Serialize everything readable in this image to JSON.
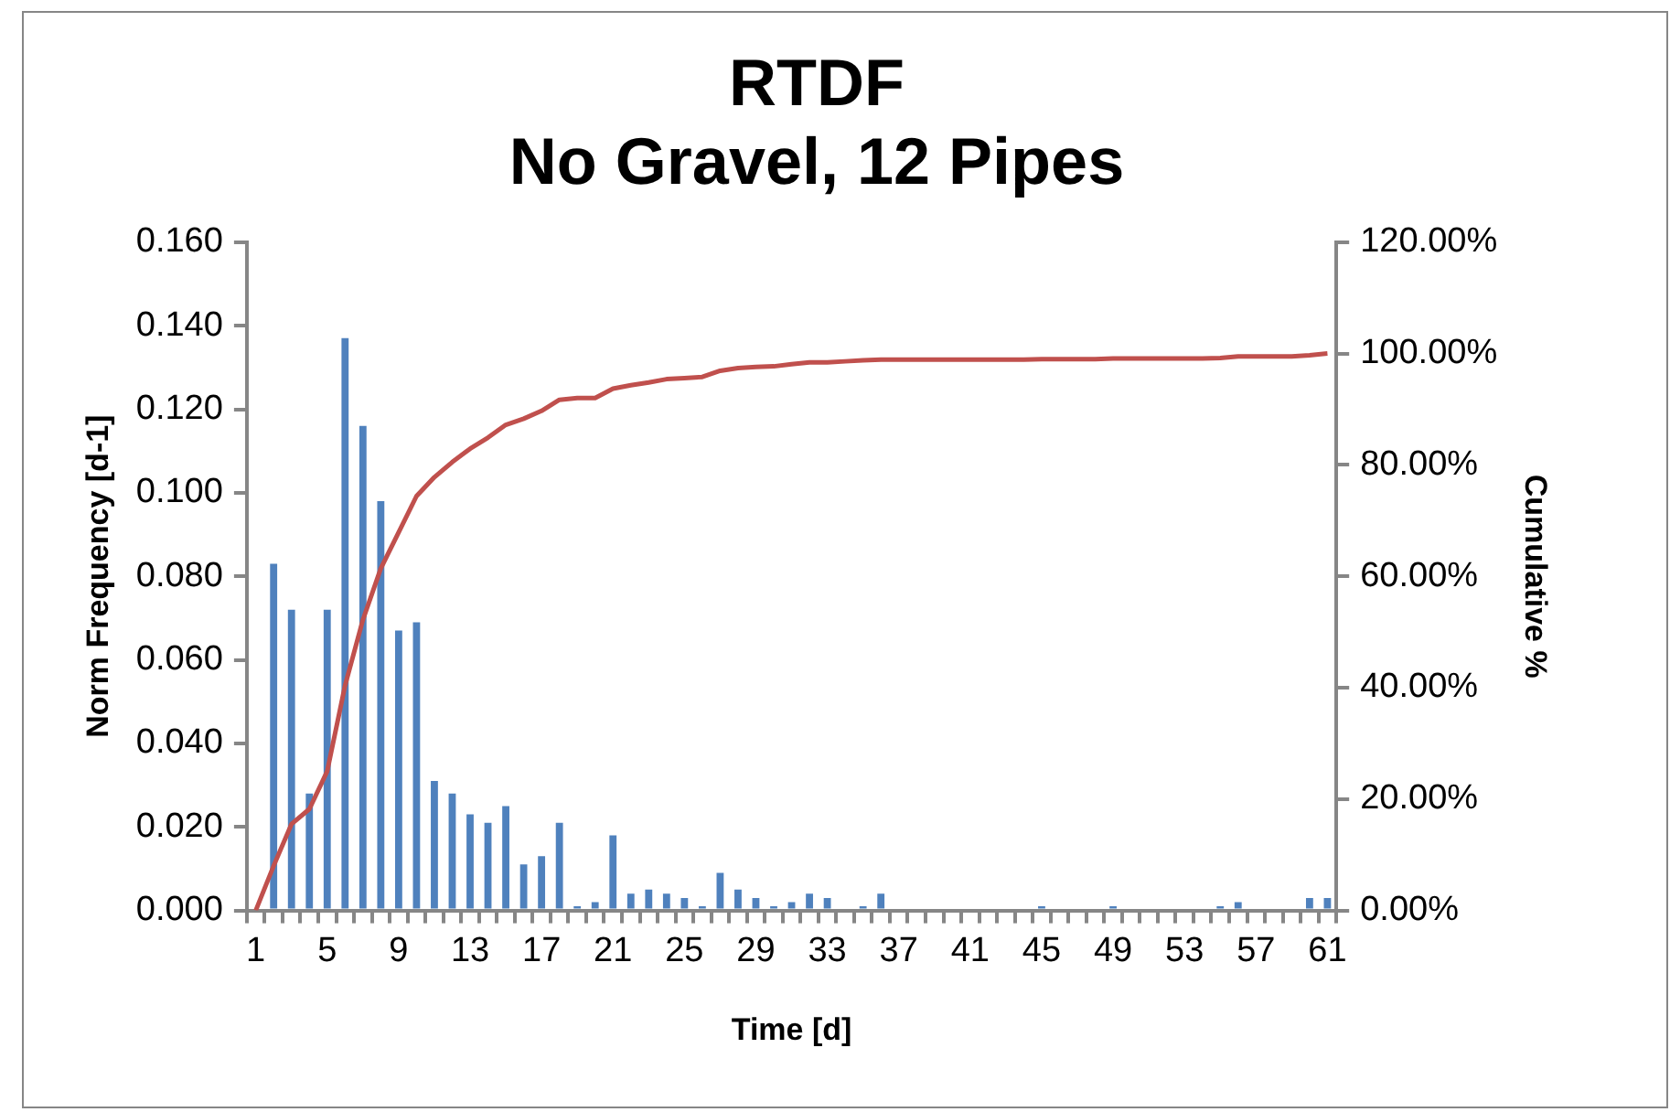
{
  "chart_data": {
    "type": "bar",
    "title": "RTDF\nNo Gravel, 12 Pipes",
    "xlabel": "Time [d]",
    "ylabel": "Norm Frequency [d-1]",
    "y2label": "Cumulative %",
    "categories": [
      "1",
      null,
      null,
      null,
      "5",
      null,
      null,
      null,
      "9",
      null,
      null,
      null,
      "13",
      null,
      null,
      null,
      "17",
      null,
      null,
      null,
      "21",
      null,
      null,
      null,
      "25",
      null,
      null,
      null,
      "29",
      null,
      null,
      null,
      "33",
      null,
      null,
      null,
      "37",
      null,
      null,
      null,
      "41",
      null,
      null,
      null,
      "45",
      null,
      null,
      null,
      "49",
      null,
      null,
      null,
      "53",
      null,
      null,
      null,
      "57",
      null,
      null,
      null,
      "61"
    ],
    "series": [
      {
        "color": "#4f81bd",
        "values": [
          0,
          0.083,
          0.072,
          0.028,
          0.072,
          0.137,
          0.116,
          0.098,
          0.067,
          0.069,
          0.031,
          0.028,
          0.023,
          0.021,
          0.025,
          0.011,
          0.013,
          0.021,
          0.001,
          0.002,
          0.018,
          0.004,
          0.005,
          0.004,
          0.003,
          0.001,
          0.009,
          0.005,
          0.003,
          0.001,
          0.002,
          0.004,
          0.003,
          0,
          0.001,
          0.004,
          0,
          0,
          0,
          0,
          0,
          0,
          0,
          0,
          0.001,
          0,
          0,
          0,
          0.001,
          0,
          0,
          0,
          0,
          0,
          0.001,
          0.002,
          0,
          0,
          0,
          0.003,
          0.003
        ]
      },
      {
        "type": "line",
        "axis": "y2",
        "color": "#c0504d",
        "marker": "none",
        "values": [
          0,
          8,
          15.5,
          18.2,
          25,
          40.4,
          52.2,
          61.4,
          67.9,
          74.4,
          77.8,
          80.5,
          82.9,
          84.9,
          87.2,
          88.3,
          89.7,
          91.7,
          92,
          92,
          93.7,
          94.3,
          94.8,
          95.4,
          95.6,
          95.8,
          96.9,
          97.4,
          97.6,
          97.7,
          98.1,
          98.4,
          98.4,
          98.6,
          98.8,
          98.9,
          98.9,
          98.9,
          98.9,
          98.9,
          98.9,
          98.9,
          98.9,
          98.9,
          99,
          99,
          99,
          99,
          99.1,
          99.1,
          99.1,
          99.1,
          99.1,
          99.1,
          99.2,
          99.5,
          99.5,
          99.5,
          99.5,
          99.7,
          100
        ]
      }
    ],
    "ylim": [
      0,
      0.16
    ],
    "yticks": [
      {
        "value": 0,
        "label": "0.000"
      },
      {
        "value": 0.02,
        "label": "0.020"
      },
      {
        "value": 0.04,
        "label": "0.040"
      },
      {
        "value": 0.06,
        "label": "0.060"
      },
      {
        "value": 0.08,
        "label": "0.080"
      },
      {
        "value": 0.1,
        "label": "0.100"
      },
      {
        "value": 0.12,
        "label": "0.120"
      },
      {
        "value": 0.14,
        "label": "0.140"
      },
      {
        "value": 0.16,
        "label": "0.160"
      }
    ],
    "y2lim": [
      0,
      120
    ],
    "y2ticks": [
      {
        "value": 0,
        "label": "0.00%"
      },
      {
        "value": 20,
        "label": "20.00%"
      },
      {
        "value": 40,
        "label": "40.00%"
      },
      {
        "value": 60,
        "label": "60.00%"
      },
      {
        "value": 80,
        "label": "80.00%"
      },
      {
        "value": 100,
        "label": "100.00%"
      },
      {
        "value": 120,
        "label": "120.00%"
      }
    ]
  }
}
